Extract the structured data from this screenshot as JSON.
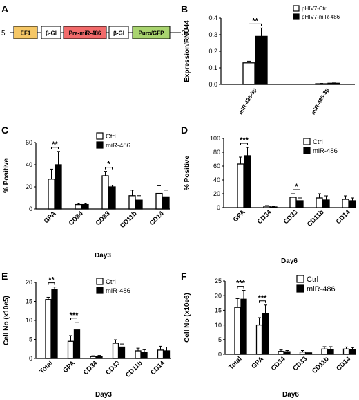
{
  "panels": {
    "A": {
      "letter": "A",
      "five_prime": "5'",
      "three_prime": "3'",
      "elements": [
        {
          "label": "EF1",
          "color": "#f5c766"
        },
        {
          "label": "β-Gl",
          "color": "#ffffff"
        },
        {
          "label": "Pre-miR-486",
          "color": "#f26b6b"
        },
        {
          "label": "β-Gl",
          "color": "#ffffff"
        },
        {
          "label": "Puro/GFP",
          "color": "#a9d46f"
        }
      ]
    },
    "B": {
      "letter": "B"
    },
    "C": {
      "letter": "C"
    },
    "D": {
      "letter": "D"
    },
    "E": {
      "letter": "E"
    },
    "F": {
      "letter": "F"
    }
  },
  "chart_data": [
    {
      "panel": "B",
      "type": "bar",
      "categories": [
        "miR-486-5p",
        "miR-486-3p"
      ],
      "series": [
        {
          "name": "pHIV7-Ctr",
          "values": [
            0.13,
            0.004
          ],
          "errors": [
            0.01,
            0.002
          ]
        },
        {
          "name": "pHIV7-miR-486",
          "values": [
            0.29,
            0.007
          ],
          "errors": [
            0.05,
            0.002
          ]
        }
      ],
      "ylabel": "Expression/RNU44",
      "xlabel": "",
      "ylim": [
        0,
        0.4
      ],
      "yticks": [
        "0.0",
        "0.1",
        "0.2",
        "0.3",
        "0.4"
      ],
      "significance": [
        {
          "category": "miR-486-5p",
          "label": "**"
        }
      ],
      "legend": "top-right"
    },
    {
      "panel": "C",
      "type": "bar",
      "categories": [
        "GPA",
        "CD34",
        "CD33",
        "CD11b",
        "CD14"
      ],
      "series": [
        {
          "name": "Ctrl",
          "values": [
            27,
            4,
            30,
            12,
            14
          ],
          "errors": [
            9,
            1,
            4,
            5,
            7
          ]
        },
        {
          "name": "miR-486",
          "values": [
            40,
            4,
            20,
            8,
            11
          ],
          "errors": [
            12,
            1,
            1.5,
            4,
            6
          ]
        }
      ],
      "ylabel": "% Positive",
      "xlabel": "Day3",
      "ylim": [
        0,
        60
      ],
      "yticks": [
        "0",
        "20",
        "40",
        "60"
      ],
      "significance": [
        {
          "category": "GPA",
          "label": "**"
        },
        {
          "category": "CD33",
          "label": "*"
        }
      ],
      "legend": "top-right"
    },
    {
      "panel": "D",
      "type": "bar",
      "categories": [
        "GPA",
        "CD34",
        "CD33",
        "CD11b",
        "CD14"
      ],
      "series": [
        {
          "name": "Ctrl",
          "values": [
            63,
            2,
            15,
            14,
            12
          ],
          "errors": [
            10,
            1,
            5,
            6,
            5
          ]
        },
        {
          "name": "miR-486",
          "values": [
            75,
            1,
            10,
            11,
            10
          ],
          "errors": [
            12,
            0.5,
            4,
            6,
            4
          ]
        }
      ],
      "ylabel": "% Positive",
      "xlabel": "Day6",
      "ylim": [
        0,
        100
      ],
      "yticks": [
        "0",
        "20",
        "40",
        "60",
        "80",
        "100"
      ],
      "significance": [
        {
          "category": "GPA",
          "label": "***"
        },
        {
          "category": "CD33",
          "label": "*"
        }
      ],
      "legend": "top-right"
    },
    {
      "panel": "E",
      "type": "bar",
      "categories": [
        "Total",
        "GPA",
        "CD34",
        "CD33",
        "CD11b",
        "CD14"
      ],
      "series": [
        {
          "name": "Ctrl",
          "values": [
            15.5,
            4.5,
            0.5,
            4,
            2,
            2.2
          ],
          "errors": [
            0.6,
            1.5,
            0.2,
            0.9,
            0.7,
            1
          ]
        },
        {
          "name": "miR-486",
          "values": [
            18.2,
            7.5,
            0.6,
            3,
            1.7,
            2
          ],
          "errors": [
            0.6,
            2,
            0.2,
            0.8,
            0.6,
            1
          ]
        }
      ],
      "ylabel": "Cell No (x10e5)",
      "xlabel": "Day3",
      "ylim": [
        0,
        20
      ],
      "yticks": [
        "0",
        "5",
        "10",
        "15",
        "20"
      ],
      "significance": [
        {
          "category": "Total",
          "label": "**"
        },
        {
          "category": "GPA",
          "label": "***"
        }
      ],
      "legend": "top-right"
    },
    {
      "panel": "F",
      "type": "bar",
      "categories": [
        "Total",
        "GPA",
        "CD34",
        "CD33",
        "CD11b",
        "CD14"
      ],
      "series": [
        {
          "name": "Ctrl",
          "values": [
            16,
            10,
            1,
            0.8,
            1.8,
            1.8
          ],
          "errors": [
            3,
            2.5,
            0.5,
            0.5,
            0.8,
            0.7
          ]
        },
        {
          "name": "miR-486",
          "values": [
            18.8,
            13.8,
            0.9,
            0.5,
            1.6,
            1.7
          ],
          "errors": [
            3,
            3,
            0.4,
            0.3,
            1,
            0.6
          ]
        }
      ],
      "ylabel": "Cell No (x10e6)",
      "xlabel": "Day6",
      "ylim": [
        0,
        25
      ],
      "yticks": [
        "0",
        "5",
        "10",
        "15",
        "20",
        "25"
      ],
      "significance": [
        {
          "category": "Total",
          "label": "***"
        },
        {
          "category": "GPA",
          "label": "***"
        }
      ],
      "legend": "top-right"
    }
  ]
}
